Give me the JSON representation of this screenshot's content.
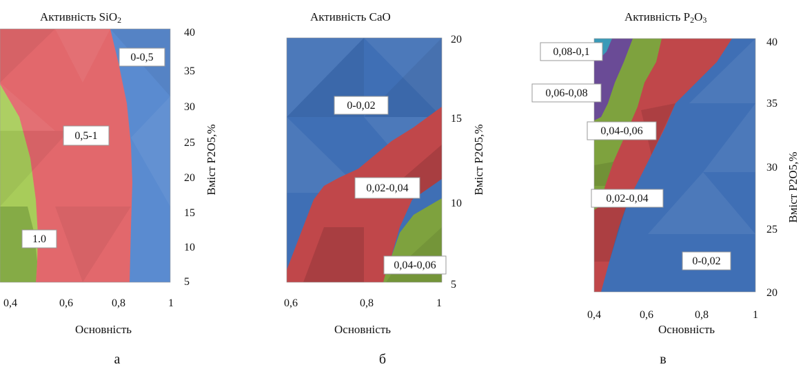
{
  "colors": {
    "blue": "#3f6fb5",
    "light_blue": "#5e8fd2",
    "red": "#cf5456",
    "dark_red": "#b8393b",
    "light_red": "#ea7074",
    "green": "#7ea23e",
    "light_green": "#b5d45e",
    "purple": "#6a4b96",
    "teal": "#3a9ab8"
  },
  "panels": [
    {
      "title_main": "Активність SiO",
      "title_sub": "2",
      "xlabel": "Основність",
      "ylabel": "Вміст P2O5,%",
      "letter": "а",
      "xticks": [
        "0,4",
        "0,6",
        "0,8",
        "1"
      ],
      "yticks": [
        "5",
        "10",
        "15",
        "20",
        "25",
        "30",
        "35",
        "40"
      ]
    },
    {
      "title_main": "Активність CaO",
      "title_sub": "",
      "xlabel": "Основність",
      "ylabel": "Вміст P2O5,%",
      "letter": "б",
      "xticks": [
        "0,6",
        "0,8",
        "1"
      ],
      "yticks": [
        "5",
        "10",
        "15",
        "20"
      ]
    },
    {
      "title_main": "Активність P",
      "title_sub": "2",
      "title_tail": "O",
      "title_sub2": "3",
      "xlabel": "Основність",
      "ylabel": "Вміст P2O5,%",
      "letter": "в",
      "xticks": [
        "0,4",
        "0,6",
        "0,8",
        "1"
      ],
      "yticks": [
        "20",
        "25",
        "30",
        "35",
        "40"
      ]
    }
  ],
  "chart_data": [
    {
      "type": "heatmap",
      "title": "Активність SiO2",
      "xlabel": "Основність",
      "ylabel": "Вміст P2O5,%",
      "xlim": [
        0.4,
        1.0
      ],
      "ylim": [
        5,
        40
      ],
      "series": [
        {
          "name": "0-0,5",
          "range": [
            0,
            0.5
          ]
        },
        {
          "name": "0,5-1",
          "range": [
            0.5,
            1
          ]
        },
        {
          "name": "1.0",
          "range": [
            1.0,
            1.0
          ]
        }
      ],
      "boundaries": [
        {
          "between": [
            "1.0",
            "0,5-1"
          ],
          "x": [
            0.41,
            0.5,
            0.53,
            0.55,
            0.55,
            0.54,
            0.52,
            0.47,
            0.4
          ],
          "y": [
            40,
            35,
            30,
            25,
            20,
            15,
            10,
            7,
            5
          ]
        },
        {
          "between": [
            "0,5-1",
            "0-0,5"
          ],
          "x": [
            0.77,
            0.81,
            0.84,
            0.86,
            0.86,
            0.86,
            0.85
          ],
          "y": [
            40,
            35,
            30,
            25,
            20,
            10,
            5
          ]
        }
      ]
    },
    {
      "type": "heatmap",
      "title": "Активність CaO",
      "xlabel": "Основність",
      "ylabel": "Вміст P2O5,%",
      "xlim": [
        0.6,
        1.0
      ],
      "ylim": [
        5,
        20
      ],
      "series": [
        {
          "name": "0-0,02",
          "range": [
            0,
            0.02
          ]
        },
        {
          "name": "0,02-0,04",
          "range": [
            0.02,
            0.04
          ]
        },
        {
          "name": "0,04-0,06",
          "range": [
            0.04,
            0.06
          ]
        }
      ],
      "boundaries": [
        {
          "between": [
            "0-0,02",
            "0,02-0,04"
          ],
          "x": [
            0.6,
            0.67,
            0.76,
            0.88,
            0.92,
            1.0
          ],
          "y": [
            5,
            10,
            11,
            12.5,
            14,
            15.5
          ]
        },
        {
          "between": [
            "0,02-0,04",
            "0-0,02"
          ],
          "x": [
            0.6,
            0.61
          ],
          "y": [
            5,
            5
          ]
        },
        {
          "between": [
            "0,02-0,04",
            "0,04-0,06"
          ],
          "x": [
            0.84,
            0.88,
            0.94,
            1.0
          ],
          "y": [
            5,
            7,
            8,
            9
          ]
        }
      ]
    },
    {
      "type": "heatmap",
      "title": "Активність P2O3",
      "xlabel": "Основність",
      "ylabel": "Вміст P2O5,%",
      "xlim": [
        0.4,
        1.0
      ],
      "ylim": [
        20,
        40
      ],
      "series": [
        {
          "name": "0-0,02",
          "range": [
            0,
            0.02
          ]
        },
        {
          "name": "0,02-0,04",
          "range": [
            0.02,
            0.04
          ]
        },
        {
          "name": "0,04-0,06",
          "range": [
            0.04,
            0.06
          ]
        },
        {
          "name": "0,06-0,08",
          "range": [
            0.06,
            0.08
          ]
        },
        {
          "name": "0,08-0,1",
          "range": [
            0.08,
            0.1
          ]
        }
      ],
      "boundaries": [
        {
          "between": [
            "0,02-0,04",
            "0-0,02"
          ],
          "x": [
            0.42,
            0.55,
            0.65,
            0.73,
            0.82,
            0.9,
            0.97
          ],
          "y": [
            20,
            25,
            28,
            31,
            34,
            37,
            40
          ]
        },
        {
          "between": [
            "0,04-0,06",
            "0,02-0,04"
          ],
          "x": [
            0.4,
            0.45,
            0.5,
            0.55,
            0.6,
            0.64
          ],
          "y": [
            30,
            33,
            35,
            37,
            39,
            40
          ]
        },
        {
          "between": [
            "0,06-0,08",
            "0,04-0,06"
          ],
          "x": [
            0.4,
            0.44,
            0.48,
            0.53
          ],
          "y": [
            33,
            35.5,
            38,
            40
          ]
        },
        {
          "between": [
            "0,08-0,1",
            "0,06-0,08"
          ],
          "x": [
            0.4,
            0.43
          ],
          "y": [
            38.8,
            40
          ]
        }
      ]
    }
  ],
  "annotations": {
    "p1": [
      "0-0,5",
      "0,5-1",
      "1.0"
    ],
    "p2": [
      "0-0,02",
      "0,02-0,04",
      "0,04-0,06"
    ],
    "p3": [
      "0,08-0,1",
      "0,06-0,08",
      "0,04-0,06",
      "0,02-0,04",
      "0-0,02"
    ]
  }
}
